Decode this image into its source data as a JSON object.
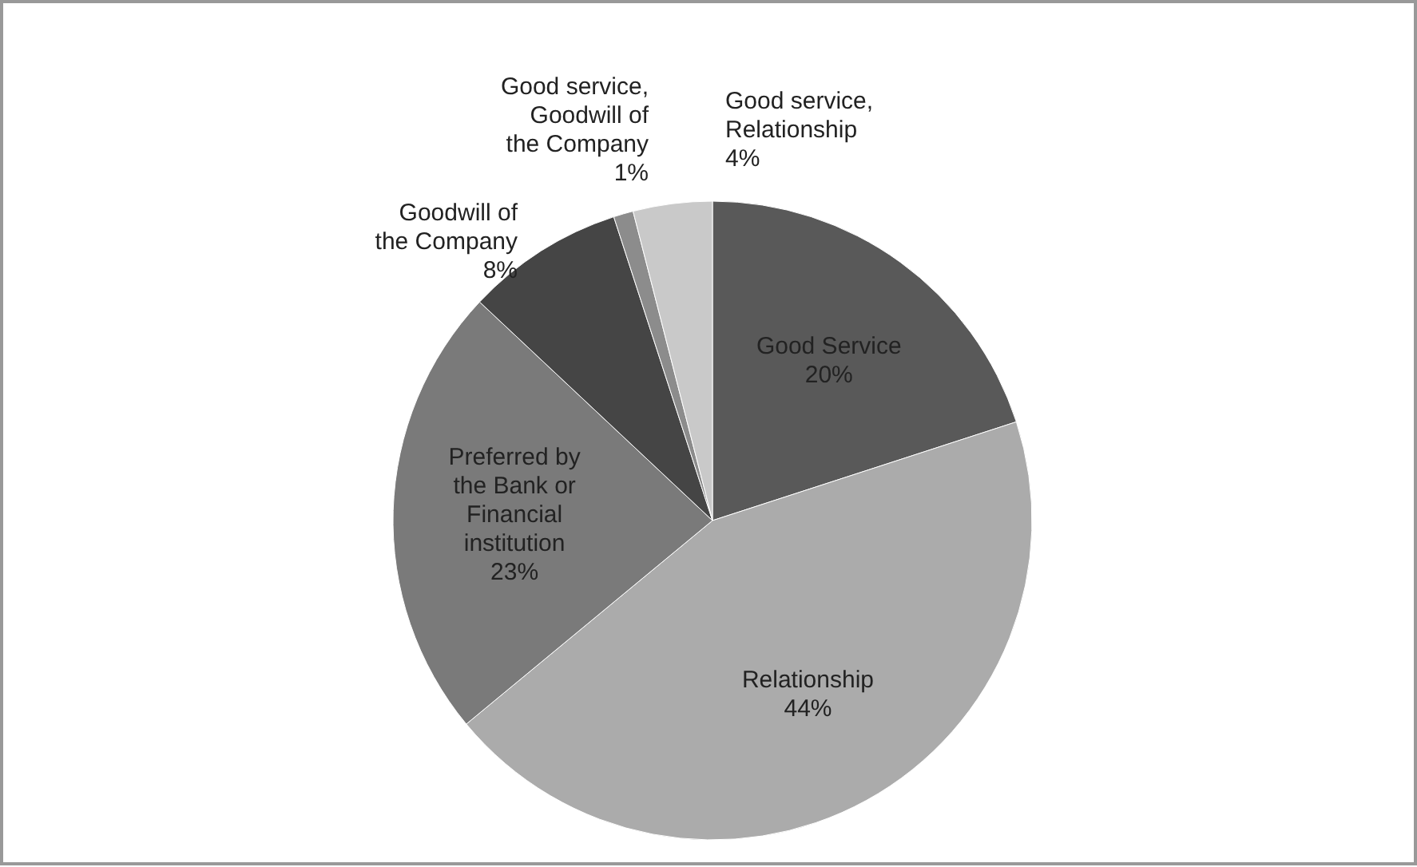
{
  "chart_data": {
    "type": "pie",
    "categories": [
      "Good Service",
      "Relationship",
      "Preferred by the Bank or Financial institution",
      "Goodwill of the Company",
      "Good service, Goodwill of the Company",
      "Good service, Relationship"
    ],
    "values": [
      20,
      44,
      23,
      8,
      1,
      4
    ],
    "value_labels": [
      "20%",
      "44%",
      "23%",
      "8%",
      "1%",
      "4%"
    ],
    "colors": [
      "#595959",
      "#ababab",
      "#7a7a7a",
      "#454545",
      "#8c8c8c",
      "#c9c9c9"
    ]
  }
}
